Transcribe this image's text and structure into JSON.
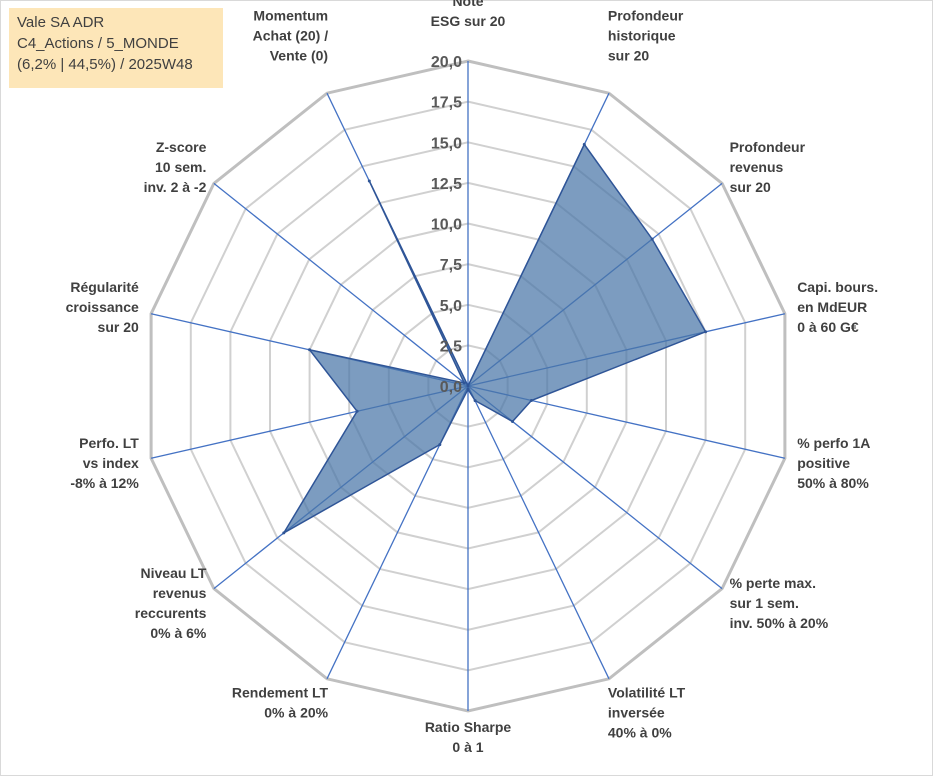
{
  "header": {
    "line1": "Vale SA ADR",
    "line2": "C4_Actions / 5_MONDE",
    "line3": "(6,2% | 44,5%) / 2025W48"
  },
  "chart_data": {
    "type": "radar",
    "title": "",
    "rmin": 0,
    "rmax": 20,
    "ticks": [
      "0,0",
      "2,5",
      "5,0",
      "7,5",
      "10,0",
      "12,5",
      "15,0",
      "17,5",
      "20,0"
    ],
    "categories": [
      [
        "Note",
        "ESG sur 20"
      ],
      [
        "Profondeur",
        "historique",
        "sur 20"
      ],
      [
        "Profondeur",
        "revenus",
        "sur 20"
      ],
      [
        "Capi. bours.",
        "en MdEUR",
        "0 à 60 G€"
      ],
      [
        "% perfo 1A",
        "positive",
        "50% à 80%"
      ],
      [
        "% perte max.",
        "sur 1 sem.",
        "inv. 50% à 20%"
      ],
      [
        "Volatilité LT",
        "inversée",
        "40% à 0%"
      ],
      [
        "Ratio Sharpe",
        "0 à 1"
      ],
      [
        "Rendement LT",
        "0% à 20%"
      ],
      [
        "Niveau LT",
        "revenus",
        "reccurents",
        "0% à 6%"
      ],
      [
        "Perfo. LT",
        "vs index",
        "-8% à 12%"
      ],
      [
        "Régularité",
        "croissance",
        "sur 20"
      ],
      [
        "Z-score",
        "10 sem.",
        "inv. 2 à -2"
      ],
      [
        "Momentum",
        "Achat (20) /",
        "Vente (0)"
      ]
    ],
    "series": [
      {
        "name": "Vale SA ADR",
        "color": "#4a76a8",
        "values": [
          0,
          16.5,
          14.5,
          15.0,
          4.0,
          3.5,
          1.0,
          0.2,
          4.0,
          14.5,
          7.0,
          10.0,
          0.3,
          14.0
        ]
      }
    ]
  }
}
